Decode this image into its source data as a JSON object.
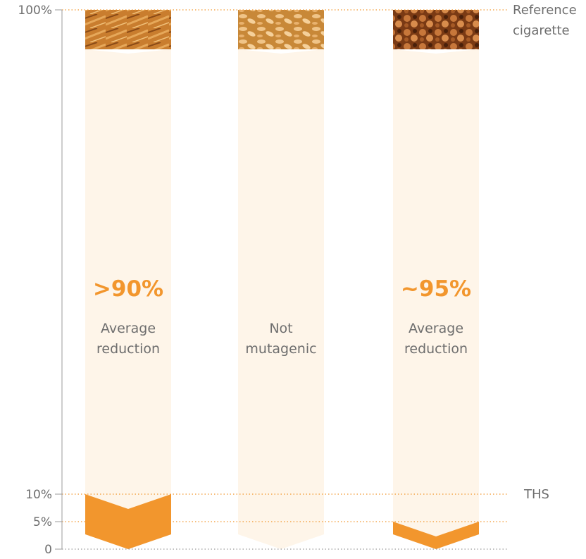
{
  "chart_data": {
    "type": "bar",
    "ylim": [
      0,
      100
    ],
    "y_ticks": [
      {
        "value": 100,
        "label": "100%"
      },
      {
        "value": 10,
        "label": "10%"
      },
      {
        "value": 5,
        "label": "5%"
      },
      {
        "value": 0,
        "label": "0"
      }
    ],
    "reference_lines": [
      {
        "value": 100,
        "label_lines": [
          "Reference",
          "cigarette"
        ]
      },
      {
        "value": 10,
        "label_lines": [
          "THS"
        ]
      }
    ],
    "bars": [
      {
        "remaining_pct": 10,
        "highlight": ">90%",
        "caption_lines": [
          "Average",
          "reduction"
        ],
        "image_theme": "cells-fibroblast"
      },
      {
        "remaining_pct": 0,
        "highlight": "",
        "caption_lines": [
          "Not",
          "mutagenic"
        ],
        "image_theme": "bacteria"
      },
      {
        "remaining_pct": 5,
        "highlight": "~95%",
        "caption_lines": [
          "Average",
          "reduction"
        ],
        "image_theme": "cells-round"
      }
    ],
    "colors": {
      "bar_fill": "#fef5e9",
      "ths_fill": "#f2962d",
      "highlight_text": "#f2962d",
      "dotted_line": "#f2962d",
      "axis": "#9b9b9b",
      "label_text": "#6e6e6e"
    }
  }
}
